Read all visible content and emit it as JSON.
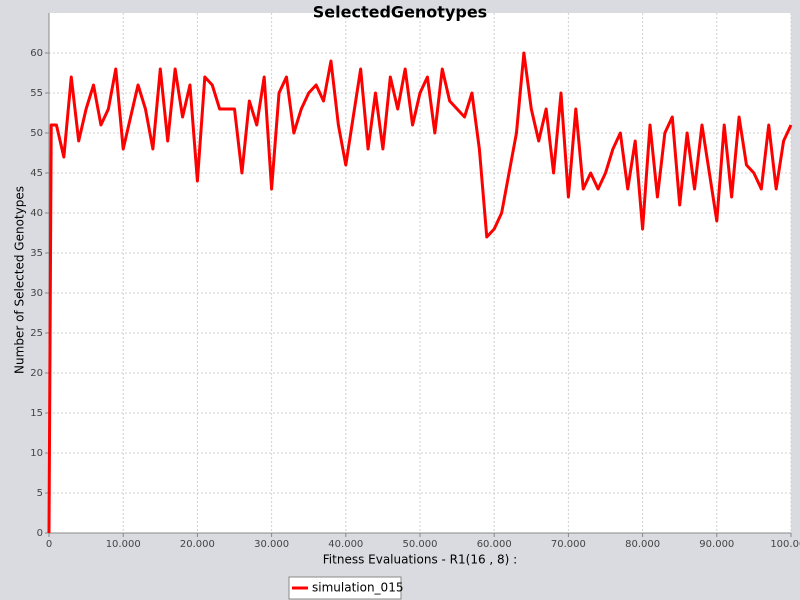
{
  "chart_data": {
    "type": "line",
    "title": "SelectedGenotypes",
    "x_label": "Fitness Evaluations - R1(16 , 8) :",
    "y_label": "Number of Selected Genotypes",
    "xlim": [
      0,
      100000
    ],
    "ylim": [
      0,
      65
    ],
    "xticks": [
      0,
      {
        "value": 10000,
        "label": "10.000"
      },
      {
        "value": 20000,
        "label": "20.000"
      },
      {
        "value": 30000,
        "label": "30.000"
      },
      {
        "value": 40000,
        "label": "40.000"
      },
      {
        "value": 50000,
        "label": "50.000"
      },
      {
        "value": 60000,
        "label": "60.000"
      },
      {
        "value": 70000,
        "label": "70.000"
      },
      {
        "value": 80000,
        "label": "80.000"
      },
      {
        "value": 90000,
        "label": "90.000"
      },
      {
        "value": 100000,
        "label": "100.000"
      }
    ],
    "yticks": [
      0,
      5,
      10,
      15,
      20,
      25,
      30,
      35,
      40,
      45,
      50,
      55,
      60
    ],
    "grid": true,
    "legend": "bottom",
    "x": [
      0,
      300,
      1000,
      2000,
      3000,
      4000,
      5000,
      6000,
      7000,
      8000,
      9000,
      10000,
      11000,
      12000,
      13000,
      14000,
      15000,
      16000,
      17000,
      18000,
      19000,
      20000,
      21000,
      22000,
      23000,
      24000,
      25000,
      26000,
      27000,
      28000,
      29000,
      30000,
      31000,
      32000,
      33000,
      34000,
      35000,
      36000,
      37000,
      38000,
      39000,
      40000,
      41000,
      42000,
      43000,
      44000,
      45000,
      46000,
      47000,
      48000,
      49000,
      50000,
      51000,
      52000,
      53000,
      54000,
      55000,
      56000,
      57000,
      58000,
      59000,
      60000,
      61000,
      62000,
      63000,
      64000,
      65000,
      66000,
      67000,
      68000,
      69000,
      70000,
      71000,
      72000,
      73000,
      74000,
      75000,
      76000,
      77000,
      78000,
      79000,
      80000,
      81000,
      82000,
      83000,
      84000,
      85000,
      86000,
      87000,
      88000,
      89000,
      90000,
      91000,
      92000,
      93000,
      94000,
      95000,
      96000,
      97000,
      98000,
      99000,
      100000
    ],
    "series": [
      {
        "name": "simulation_015",
        "color": "#ff0000",
        "values": [
          0,
          51,
          51,
          47,
          57,
          49,
          53,
          56,
          51,
          53,
          58,
          48,
          52,
          56,
          53,
          48,
          58,
          49,
          58,
          52,
          56,
          44,
          57,
          56,
          53,
          53,
          53,
          45,
          54,
          51,
          57,
          43,
          55,
          57,
          50,
          53,
          55,
          56,
          54,
          59,
          51,
          46,
          52,
          58,
          48,
          55,
          48,
          57,
          53,
          58,
          51,
          55,
          57,
          50,
          58,
          54,
          53,
          52,
          55,
          48,
          37,
          38,
          40,
          45,
          50,
          60,
          53,
          49,
          53,
          45,
          55,
          42,
          53,
          43,
          45,
          43,
          45,
          48,
          50,
          43,
          49,
          38,
          51,
          42,
          50,
          52,
          41,
          50,
          43,
          51,
          45,
          39,
          51,
          42,
          52,
          46,
          45,
          43,
          51,
          43,
          49,
          51
        ]
      }
    ]
  }
}
